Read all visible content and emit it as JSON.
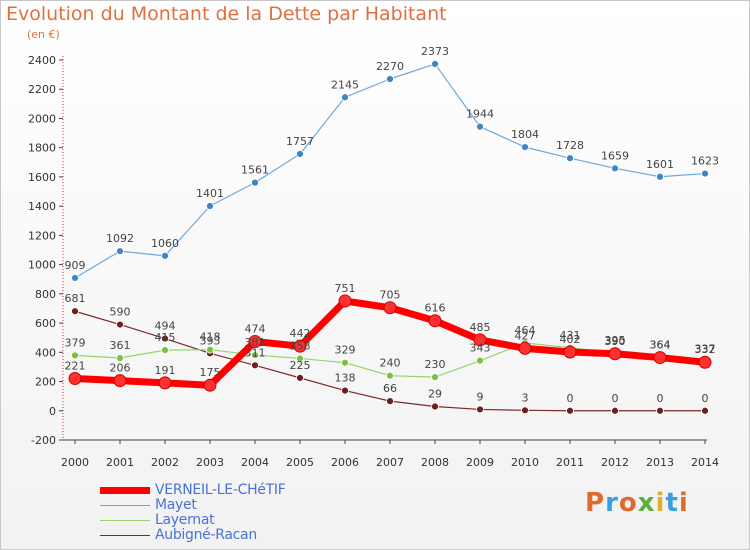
{
  "title": "Evolution du Montant de la Dette par Habitant",
  "unit_label": "(en €)",
  "logo": {
    "text": "Proxiti",
    "colors": [
      "#e06a2c",
      "#3a9fe0",
      "#e06a2c",
      "#5ab03c",
      "#e0b02c",
      "#3a9fe0",
      "#e06a2c"
    ]
  },
  "chart_data": {
    "type": "line",
    "x": [
      2000,
      2001,
      2002,
      2003,
      2004,
      2005,
      2006,
      2007,
      2008,
      2009,
      2010,
      2011,
      2012,
      2013,
      2014
    ],
    "ylim": [
      -200,
      2400
    ],
    "yticks": [
      -200,
      0,
      200,
      400,
      600,
      800,
      1000,
      1200,
      1400,
      1600,
      1800,
      2000,
      2200,
      2400
    ],
    "grid": false,
    "legend_position": "bottom-left",
    "series": [
      {
        "name": "VERNEIL-LE-CHéTIF",
        "color": "#ff0000",
        "marker": "#ff3030",
        "width": 7,
        "values": [
          221,
          206,
          191,
          175,
          474,
          442,
          751,
          705,
          616,
          485,
          427,
          402,
          390,
          364,
          332
        ]
      },
      {
        "name": "Mayet",
        "color": "#6fa8dc",
        "marker": "#3d85c6",
        "width": 1.2,
        "values": [
          909,
          1092,
          1060,
          1401,
          1561,
          1757,
          2145,
          2270,
          2373,
          1944,
          1804,
          1728,
          1659,
          1601,
          1623
        ]
      },
      {
        "name": "Layernat",
        "color": "#93d56b",
        "marker": "#7ac143",
        "width": 1.2,
        "values": [
          379,
          361,
          415,
          418,
          381,
          358,
          329,
          240,
          230,
          343,
          464,
          431,
          395,
          364,
          337
        ]
      },
      {
        "name": "Aubigné-Racan",
        "color": "#7b2a2a",
        "marker": "#6b1f1f",
        "width": 1.2,
        "values": [
          681,
          590,
          494,
          393,
          311,
          225,
          138,
          66,
          29,
          9,
          3,
          0,
          0,
          0,
          0
        ]
      }
    ]
  }
}
